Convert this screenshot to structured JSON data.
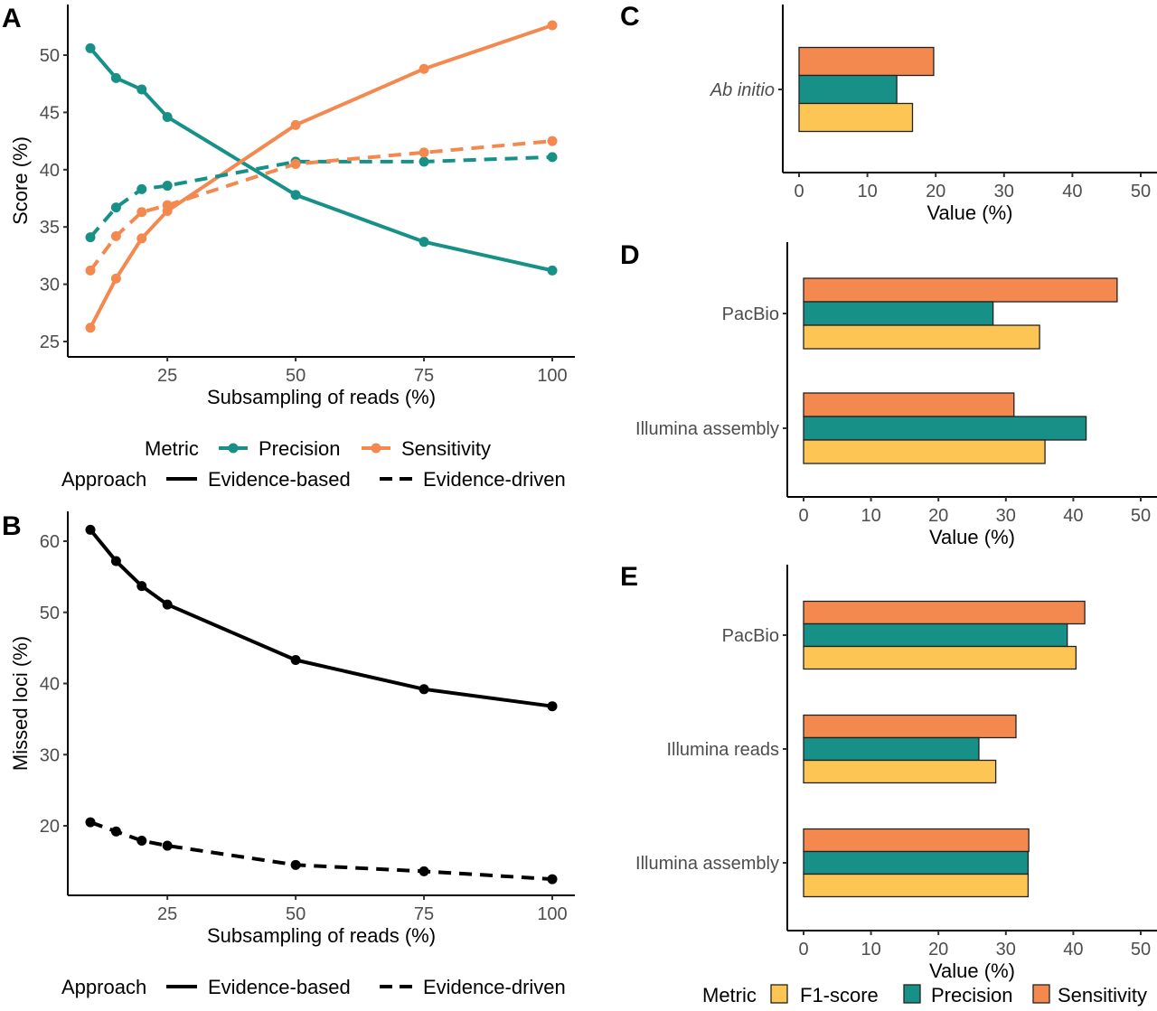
{
  "colors": {
    "precision": "#179187",
    "sensitivity": "#F4894F",
    "f1": "#FDC554",
    "axis": "#000000"
  },
  "chart_data": [
    {
      "id": "A",
      "panel_label": "A",
      "type": "line",
      "xlabel": "Subsampling of reads (%)",
      "ylabel": "Score (%)",
      "xlim": [
        10,
        100
      ],
      "ylim": [
        24,
        54
      ],
      "xticks": [
        25,
        50,
        75,
        100
      ],
      "yticks": [
        25,
        30,
        35,
        40,
        45,
        50
      ],
      "x": [
        10,
        15,
        20,
        25,
        50,
        75,
        100
      ],
      "series": [
        {
          "name": "Precision",
          "approach": "Evidence-based",
          "metric": "Precision",
          "values": [
            50.6,
            48.0,
            47.0,
            44.6,
            37.8,
            33.7,
            31.2
          ]
        },
        {
          "name": "Sensitivity",
          "approach": "Evidence-based",
          "metric": "Sensitivity",
          "values": [
            26.2,
            30.5,
            34.0,
            36.4,
            43.9,
            48.8,
            52.6
          ]
        },
        {
          "name": "Precision",
          "approach": "Evidence-driven",
          "metric": "Precision",
          "values": [
            34.1,
            36.7,
            38.3,
            38.6,
            40.7,
            40.7,
            41.1
          ]
        },
        {
          "name": "Sensitivity",
          "approach": "Evidence-driven",
          "metric": "Sensitivity",
          "values": [
            31.2,
            34.2,
            36.3,
            36.9,
            40.5,
            41.5,
            42.5
          ]
        }
      ],
      "legend": {
        "placement": "bottom",
        "metric_title": "Metric",
        "metric_items": [
          "Precision",
          "Sensitivity"
        ],
        "approach_title": "Approach",
        "approach_items": [
          "Evidence-based",
          "Evidence-driven"
        ]
      },
      "grid": false
    },
    {
      "id": "B",
      "panel_label": "B",
      "type": "line",
      "xlabel": "Subsampling of reads (%)",
      "ylabel": "Missed loci (%)",
      "xlim": [
        10,
        100
      ],
      "ylim": [
        10,
        64
      ],
      "xticks": [
        25,
        50,
        75,
        100
      ],
      "yticks": [
        20,
        30,
        40,
        50,
        60
      ],
      "x": [
        10,
        15,
        20,
        25,
        50,
        75,
        100
      ],
      "series": [
        {
          "name": "Evidence-based",
          "approach": "Evidence-based",
          "values": [
            61.6,
            57.2,
            53.7,
            51.1,
            43.3,
            39.2,
            36.8
          ]
        },
        {
          "name": "Evidence-driven",
          "approach": "Evidence-driven",
          "values": [
            20.5,
            19.2,
            17.9,
            17.2,
            14.5,
            13.6,
            12.5
          ]
        }
      ],
      "legend": {
        "placement": "bottom",
        "approach_title": "Approach",
        "approach_items": [
          "Evidence-based",
          "Evidence-driven"
        ]
      },
      "grid": false
    },
    {
      "id": "C",
      "panel_label": "C",
      "type": "bar",
      "orientation": "horizontal",
      "xlabel": "Value (%)",
      "ylabel": "",
      "xlim": [
        0,
        50
      ],
      "xticks": [
        0,
        10,
        20,
        30,
        40,
        50
      ],
      "categories": [
        "Ab initio"
      ],
      "categories_italic": true,
      "series": [
        {
          "name": "Sensitivity",
          "values": [
            19.7
          ]
        },
        {
          "name": "Precision",
          "values": [
            14.3
          ]
        },
        {
          "name": "F1-score",
          "values": [
            16.6
          ]
        }
      ]
    },
    {
      "id": "D",
      "panel_label": "D",
      "type": "bar",
      "orientation": "horizontal",
      "xlabel": "Value (%)",
      "ylabel": "",
      "xlim": [
        0,
        50
      ],
      "xticks": [
        0,
        10,
        20,
        30,
        40,
        50
      ],
      "categories": [
        "PacBio",
        "Illumina assembly"
      ],
      "series": [
        {
          "name": "Sensitivity",
          "values": [
            46.5,
            31.2
          ]
        },
        {
          "name": "Precision",
          "values": [
            28.1,
            41.9
          ]
        },
        {
          "name": "F1-score",
          "values": [
            35.0,
            35.8
          ]
        }
      ]
    },
    {
      "id": "E",
      "panel_label": "E",
      "type": "bar",
      "orientation": "horizontal",
      "xlabel": "Value (%)",
      "ylabel": "",
      "xlim": [
        0,
        50
      ],
      "xticks": [
        0,
        10,
        20,
        30,
        40,
        50
      ],
      "categories": [
        "PacBio",
        "Illumina reads",
        "Illumina assembly"
      ],
      "series": [
        {
          "name": "Sensitivity",
          "values": [
            41.7,
            31.5,
            33.4
          ]
        },
        {
          "name": "Precision",
          "values": [
            39.1,
            26.0,
            33.3
          ]
        },
        {
          "name": "F1-score",
          "values": [
            40.4,
            28.5,
            33.3
          ]
        }
      ],
      "legend": {
        "placement": "bottom",
        "title": "Metric",
        "items": [
          "F1-score",
          "Precision",
          "Sensitivity"
        ]
      }
    }
  ]
}
